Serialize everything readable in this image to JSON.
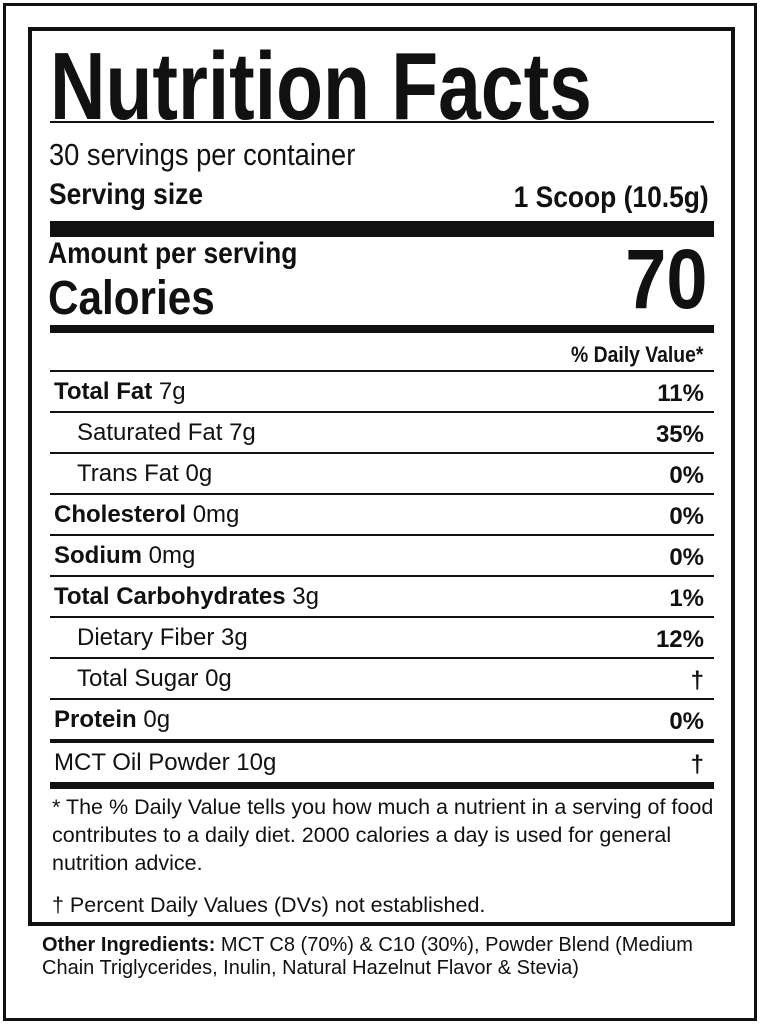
{
  "title": "Nutrition Facts",
  "servings_per_container": "30 servings per container",
  "serving_size_label": "Serving size",
  "serving_size_value": "1 Scoop (10.5g)",
  "amount_per_serving": "Amount per serving",
  "calories_label": "Calories",
  "calories_value": "70",
  "daily_value_header": "% Daily Value*",
  "nutrients": [
    {
      "name": "Total Fat",
      "amount": " 7g",
      "dv": "11%",
      "bold": true
    },
    {
      "name": "Saturated Fat 7g",
      "amount": "",
      "dv": "35%",
      "bold": false
    },
    {
      "name": "Trans Fat 0g",
      "amount": "",
      "dv": "0%",
      "bold": false
    },
    {
      "name": "Cholesterol",
      "amount": " 0mg",
      "dv": "0%",
      "bold": true
    },
    {
      "name": "Sodium",
      "amount": " 0mg",
      "dv": "0%",
      "bold": true
    },
    {
      "name": "Total Carbohydrates",
      "amount": " 3g",
      "dv": "1%",
      "bold": true
    },
    {
      "name": "Dietary Fiber 3g",
      "amount": "",
      "dv": "12%",
      "bold": false
    },
    {
      "name": "Total Sugar 0g",
      "amount": "",
      "dv": "†",
      "bold": false
    },
    {
      "name": "Protein",
      "amount": " 0g",
      "dv": "0%",
      "bold": true
    },
    {
      "name": "MCT Oil Powder 10g",
      "amount": "",
      "dv": "†",
      "bold": false
    }
  ],
  "footnote": "* The % Daily Value tells you how much a nutrient in a serving of food contributes to a daily diet. 2000 calories a day is used for general nutrition advice.",
  "dagger_note": "† Percent Daily Values (DVs) not established.",
  "ingredients_label": "Other Ingredients:",
  "ingredients_text": " MCT C8 (70%) & C10 (30%), Powder Blend (Medium Chain Triglycerides, Inulin, Natural Hazelnut Flavor & Stevia)"
}
